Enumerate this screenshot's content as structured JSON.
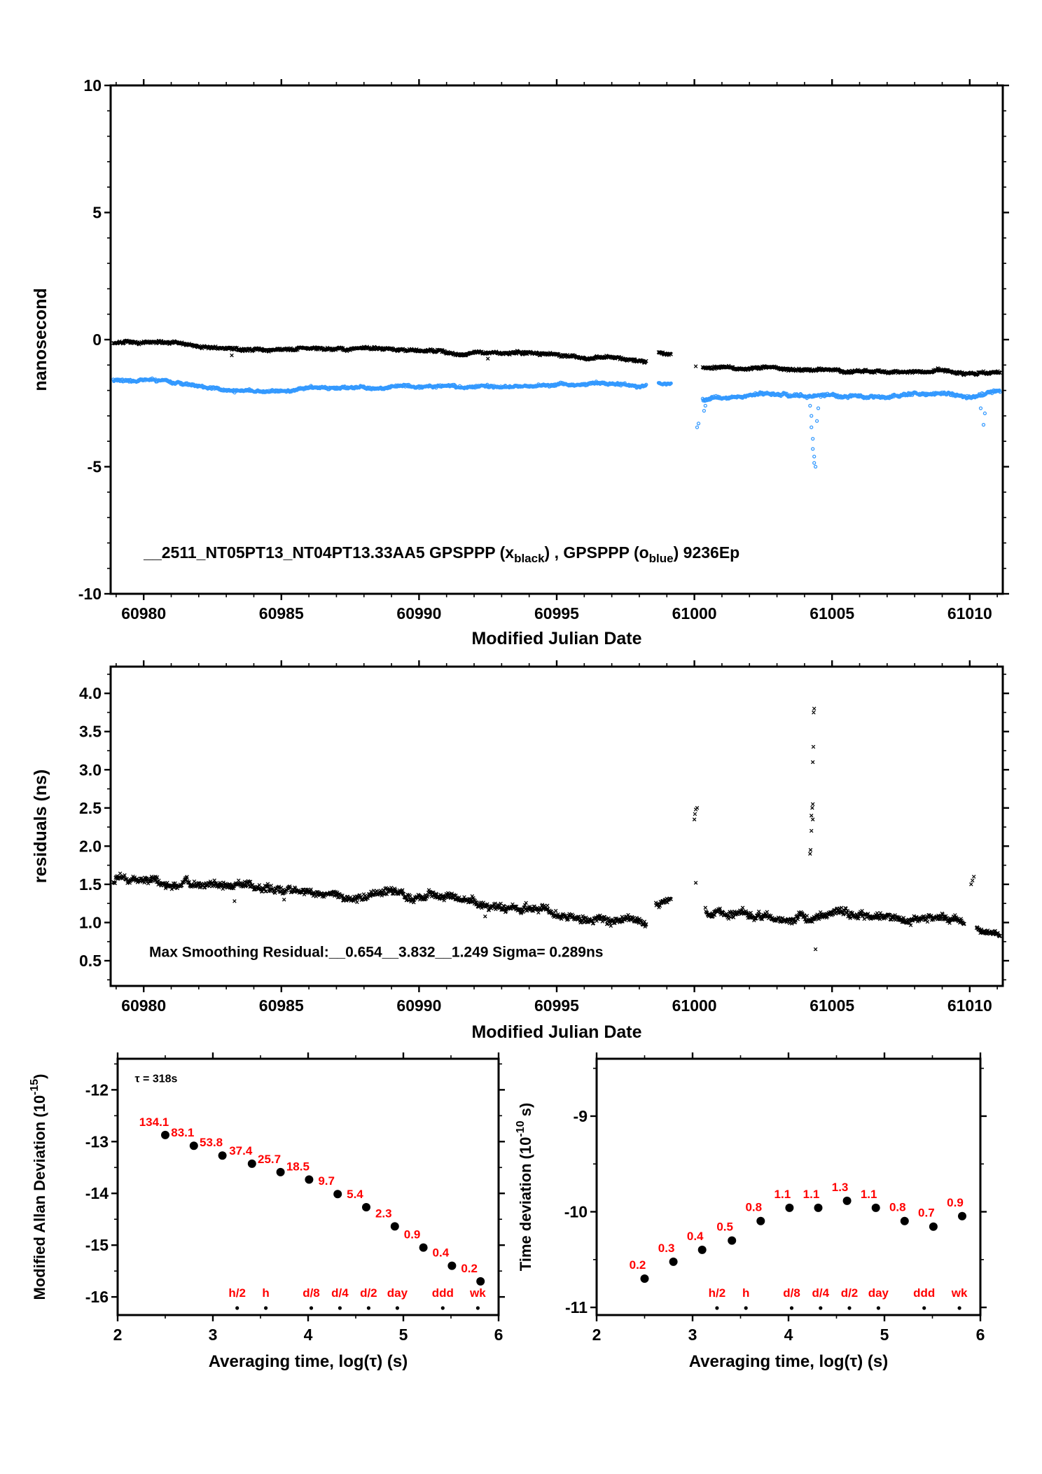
{
  "figure": {
    "colors": {
      "black": "#000000",
      "blue": "#3399ff",
      "red": "#ff0000",
      "background": "#ffffff"
    }
  },
  "chart_data": [
    {
      "id": "phase",
      "type": "scatter",
      "xlabel": "Modified Julian Date",
      "ylabel": "nanosecond",
      "xlim": [
        60978.8,
        61011.2
      ],
      "ylim": [
        -10,
        10
      ],
      "xticks": [
        60980,
        60985,
        60990,
        60995,
        61000,
        61005,
        61010
      ],
      "xtick_labels": [
        "60980",
        "60985",
        "60990",
        "60995",
        "61000",
        "61005",
        "61010"
      ],
      "xminor": 1,
      "yticks": [
        -10,
        -5,
        0,
        5,
        10
      ],
      "ytick_labels": [
        "-10",
        "-5",
        "0",
        "5",
        "10"
      ],
      "yminor": 1,
      "series": [
        {
          "name": "GPSPPP-x-black",
          "marker": "x",
          "color": "#000000",
          "size": 2.3,
          "noise_note": "dense 5-min points",
          "segments": [
            {
              "x0": 60978.9,
              "x1": 60998.25,
              "n": 950,
              "noise": 0.055,
              "trend": [
                [
                  60978.9,
                  -0.12
                ],
                [
                  60980.2,
                  -0.15
                ],
                [
                  60981.5,
                  -0.2
                ],
                [
                  60983,
                  -0.38
                ],
                [
                  60984.5,
                  -0.42
                ],
                [
                  60986,
                  -0.38
                ],
                [
                  60987.5,
                  -0.33
                ],
                [
                  60989,
                  -0.38
                ],
                [
                  60990.5,
                  -0.45
                ],
                [
                  60992,
                  -0.5
                ],
                [
                  60993.5,
                  -0.52
                ],
                [
                  60995,
                  -0.6
                ],
                [
                  60996.5,
                  -0.68
                ],
                [
                  60997.5,
                  -0.8
                ],
                [
                  60998.25,
                  -0.9
                ]
              ]
            },
            {
              "x0": 60998.7,
              "x1": 60999.15,
              "n": 25,
              "noise": 0.04,
              "trend": [
                [
                  60998.7,
                  -0.5
                ],
                [
                  60999.15,
                  -0.6
                ]
              ]
            },
            {
              "x0": 61000.3,
              "x1": 61011.1,
              "n": 560,
              "noise": 0.05,
              "trend": [
                [
                  61000.3,
                  -1.1
                ],
                [
                  61001.5,
                  -1.18
                ],
                [
                  61002.6,
                  -1.05
                ],
                [
                  61003.5,
                  -1.2
                ],
                [
                  61005,
                  -1.22
                ],
                [
                  61007,
                  -1.25
                ],
                [
                  61009,
                  -1.22
                ],
                [
                  61010,
                  -1.3
                ],
                [
                  61011.1,
                  -1.32
                ]
              ]
            }
          ],
          "outliers": [
            [
              60983.2,
              -0.62
            ],
            [
              60992.5,
              -0.75
            ],
            [
              61000.05,
              -1.05
            ]
          ]
        },
        {
          "name": "GPSPPP-o-blue",
          "marker": "o",
          "color": "#3399ff",
          "size": 2.0,
          "segments": [
            {
              "x0": 60978.9,
              "x1": 60998.25,
              "n": 950,
              "noise": 0.05,
              "trend": [
                [
                  60978.9,
                  -1.62
                ],
                [
                  60980,
                  -1.55
                ],
                [
                  60981,
                  -1.68
                ],
                [
                  60982.5,
                  -1.85
                ],
                [
                  60984,
                  -2.0
                ],
                [
                  60985.5,
                  -1.95
                ],
                [
                  60987,
                  -1.88
                ],
                [
                  60989,
                  -1.85
                ],
                [
                  60991,
                  -1.82
                ],
                [
                  60993,
                  -1.85
                ],
                [
                  60995,
                  -1.78
                ],
                [
                  60996.5,
                  -1.72
                ],
                [
                  60998.25,
                  -1.8
                ]
              ]
            },
            {
              "x0": 60998.7,
              "x1": 60999.15,
              "n": 25,
              "noise": 0.04,
              "trend": [
                [
                  60998.7,
                  -1.72
                ],
                [
                  60999.15,
                  -1.78
                ]
              ]
            },
            {
              "x0": 61000.3,
              "x1": 61011.1,
              "n": 560,
              "noise": 0.06,
              "trend": [
                [
                  61000.3,
                  -2.35
                ],
                [
                  61001,
                  -2.25
                ],
                [
                  61002,
                  -2.2
                ],
                [
                  61003.5,
                  -2.18
                ],
                [
                  61005,
                  -2.2
                ],
                [
                  61007,
                  -2.25
                ],
                [
                  61008.5,
                  -2.15
                ],
                [
                  61010,
                  -2.2
                ],
                [
                  61011.1,
                  -2.05
                ]
              ]
            }
          ],
          "outliers": [
            [
              61000.1,
              -3.45
            ],
            [
              61000.15,
              -3.3
            ],
            [
              61000.35,
              -2.8
            ],
            [
              61000.4,
              -2.6
            ],
            [
              61004.2,
              -2.6
            ],
            [
              61004.25,
              -3.0
            ],
            [
              61004.25,
              -3.45
            ],
            [
              61004.3,
              -3.9
            ],
            [
              61004.3,
              -4.3
            ],
            [
              61004.35,
              -4.6
            ],
            [
              61004.35,
              -4.85
            ],
            [
              61004.4,
              -5.0
            ],
            [
              61004.45,
              -3.2
            ],
            [
              61004.5,
              -2.7
            ],
            [
              61010.4,
              -2.7
            ],
            [
              61010.5,
              -3.35
            ],
            [
              61010.55,
              -2.9
            ]
          ]
        }
      ],
      "annotations": [
        {
          "x": 60980.0,
          "y": -8.6,
          "size": 23,
          "bold": true,
          "color": "#000000",
          "anchor": "start",
          "parts": [
            {
              "t": "__2511_NT05PT13_NT04PT13.33AA5     GPSPPP (x"
            },
            {
              "t": "black",
              "sub": true
            },
            {
              "t": ") ,  GPSPPP (o"
            },
            {
              "t": "blue",
              "sub": true
            },
            {
              "t": ")  9236Ep"
            }
          ]
        }
      ]
    },
    {
      "id": "residuals",
      "type": "scatter",
      "xlabel": "Modified Julian Date",
      "ylabel": "residuals (ns)",
      "xlim": [
        60978.8,
        61011.2
      ],
      "ylim": [
        0.17,
        4.35
      ],
      "xticks": [
        60980,
        60985,
        60990,
        60995,
        61000,
        61005,
        61010
      ],
      "xtick_labels": [
        "60980",
        "60985",
        "60990",
        "60995",
        "61000",
        "61005",
        "61010"
      ],
      "xminor": 1,
      "yticks": [
        0.5,
        1.0,
        1.5,
        2.0,
        2.5,
        3.0,
        3.5,
        4.0
      ],
      "ytick_labels": [
        "0.5",
        "1.0",
        "1.5",
        "2.0",
        "2.5",
        "3.0",
        "3.5",
        "4.0"
      ],
      "yminor": 0.25,
      "series": [
        {
          "name": "smoothing-residuals",
          "marker": "x",
          "color": "#000000",
          "size": 2.3,
          "segments": [
            {
              "x0": 60978.9,
              "x1": 60998.25,
              "n": 950,
              "noise": 0.05,
              "trend": [
                [
                  60978.9,
                  1.55
                ],
                [
                  60980,
                  1.52
                ],
                [
                  60981.5,
                  1.55
                ],
                [
                  60983,
                  1.48
                ],
                [
                  60984.5,
                  1.45
                ],
                [
                  60986,
                  1.42
                ],
                [
                  60987.5,
                  1.4
                ],
                [
                  60989,
                  1.38
                ],
                [
                  60990.5,
                  1.32
                ],
                [
                  60992,
                  1.28
                ],
                [
                  60993.5,
                  1.2
                ],
                [
                  60995,
                  1.12
                ],
                [
                  60996.5,
                  1.05
                ],
                [
                  60997.5,
                  0.98
                ],
                [
                  60998.25,
                  0.95
                ]
              ]
            },
            {
              "x0": 60998.6,
              "x1": 60999.15,
              "n": 30,
              "noise": 0.04,
              "trend": [
                [
                  60998.6,
                  1.25
                ],
                [
                  60999.15,
                  1.27
                ]
              ]
            },
            {
              "x0": 61000.4,
              "x1": 61009.8,
              "n": 480,
              "noise": 0.05,
              "trend": [
                [
                  61000.4,
                  1.15
                ],
                [
                  61001.5,
                  1.12
                ],
                [
                  61003,
                  1.1
                ],
                [
                  61004.5,
                  1.05
                ],
                [
                  61006,
                  1.08
                ],
                [
                  61007.5,
                  1.05
                ],
                [
                  61009,
                  1.0
                ],
                [
                  61009.8,
                  1.02
                ]
              ]
            },
            {
              "x0": 61010.25,
              "x1": 61011.1,
              "n": 45,
              "noise": 0.04,
              "trend": [
                [
                  61010.25,
                  0.95
                ],
                [
                  61011.1,
                  0.8
                ]
              ]
            }
          ],
          "outliers": [
            [
              60983.3,
              1.28
            ],
            [
              60985.1,
              1.3
            ],
            [
              60992.4,
              1.08
            ],
            [
              61000.0,
              2.35
            ],
            [
              61000.02,
              2.42
            ],
            [
              61000.05,
              2.48
            ],
            [
              61000.1,
              2.5
            ],
            [
              61000.05,
              1.52
            ],
            [
              61004.2,
              1.9
            ],
            [
              61004.22,
              1.95
            ],
            [
              61004.25,
              2.2
            ],
            [
              61004.25,
              2.4
            ],
            [
              61004.28,
              2.5
            ],
            [
              61004.3,
              2.55
            ],
            [
              61004.3,
              3.1
            ],
            [
              61004.32,
              3.3
            ],
            [
              61004.33,
              3.75
            ],
            [
              61004.35,
              3.8
            ],
            [
              61004.3,
              2.35
            ],
            [
              61004.4,
              0.65
            ],
            [
              61010.05,
              1.5
            ],
            [
              61010.1,
              1.55
            ],
            [
              61010.15,
              1.6
            ]
          ]
        }
      ],
      "annotations": [
        {
          "x": 60980.2,
          "y": 0.55,
          "size": 21,
          "bold": true,
          "color": "#000000",
          "anchor": "start",
          "parts": [
            {
              "t": "Max Smoothing Residual:__0.654__3.832__1.249  Sigma= 0.289ns"
            }
          ]
        }
      ]
    },
    {
      "id": "mdev",
      "type": "scatter",
      "xlabel": "Averaging time, log(τ) (s)",
      "ylabel_parts": [
        {
          "t": "Modified Allan Deviation (10"
        },
        {
          "t": "-15",
          "sup": true
        },
        {
          "t": ")"
        }
      ],
      "xlim": [
        2,
        6
      ],
      "ylim": [
        -16.35,
        -11.4
      ],
      "xticks": [
        2,
        3,
        4,
        5,
        6
      ],
      "xtick_labels": [
        "2",
        "3",
        "4",
        "5",
        "6"
      ],
      "xminor": 0.5,
      "yticks": [
        -12,
        -13,
        -14,
        -15,
        -16
      ],
      "ytick_labels": [
        "-12",
        "-13",
        "-14",
        "-15",
        "-16"
      ],
      "yminor": 0.5,
      "points": {
        "taus_log10": [
          2.5,
          2.8,
          3.1,
          3.41,
          3.71,
          4.01,
          4.31,
          4.61,
          4.91,
          5.21,
          5.51,
          5.81
        ],
        "values": [
          134.1,
          83.1,
          53.8,
          37.4,
          25.7,
          18.5,
          9.7,
          5.4,
          2.3,
          0.9,
          0.4,
          0.2
        ],
        "labels": [
          "134.1",
          "83.1",
          "53.8",
          "37.4",
          "25.7",
          "18.5",
          "9.7",
          "5.4",
          "2.3",
          "0.9",
          "0.4",
          "0.2"
        ],
        "unit_exponent": -15
      },
      "marker_row": {
        "labels": [
          "h/2",
          "h",
          "d/8",
          "d/4",
          "d/2",
          "day",
          "ddd",
          "wk"
        ],
        "taus_log10": [
          3.255,
          3.556,
          4.033,
          4.334,
          4.635,
          4.937,
          5.414,
          5.782
        ]
      },
      "annotations": [
        {
          "x": 2.18,
          "y": -11.85,
          "size": 16,
          "bold": true,
          "color": "#000000",
          "anchor": "start",
          "parts": [
            {
              "t": "τ = 318s"
            }
          ]
        }
      ]
    },
    {
      "id": "tdev",
      "type": "scatter",
      "xlabel": "Averaging time, log(τ) (s)",
      "ylabel_parts": [
        {
          "t": "Time deviation (10"
        },
        {
          "t": "-10",
          "sup": true
        },
        {
          "t": " s)"
        }
      ],
      "xlim": [
        2,
        6
      ],
      "ylim": [
        -11.08,
        -8.4
      ],
      "xticks": [
        2,
        3,
        4,
        5,
        6
      ],
      "xtick_labels": [
        "2",
        "3",
        "4",
        "5",
        "6"
      ],
      "xminor": 0.5,
      "yticks": [
        -9,
        -10,
        -11
      ],
      "ytick_labels": [
        "-9",
        "-10",
        "-11"
      ],
      "yminor": 0.5,
      "points": {
        "taus_log10": [
          2.5,
          2.8,
          3.1,
          3.41,
          3.71,
          4.01,
          4.31,
          4.61,
          4.91,
          5.21,
          5.51,
          5.81
        ],
        "values": [
          0.2,
          0.3,
          0.4,
          0.5,
          0.8,
          1.1,
          1.1,
          1.3,
          1.1,
          0.8,
          0.7,
          0.9
        ],
        "labels": [
          "0.2",
          "0.3",
          "0.4",
          "0.5",
          "0.8",
          "1.1",
          "1.1",
          "1.3",
          "1.1",
          "0.8",
          "0.7",
          "0.9"
        ],
        "unit_exponent": -10
      },
      "marker_row": {
        "labels": [
          "h/2",
          "h",
          "d/8",
          "d/4",
          "d/2",
          "day",
          "ddd",
          "wk"
        ],
        "taus_log10": [
          3.255,
          3.556,
          4.033,
          4.334,
          4.635,
          4.937,
          5.414,
          5.782
        ]
      },
      "annotations": []
    }
  ]
}
